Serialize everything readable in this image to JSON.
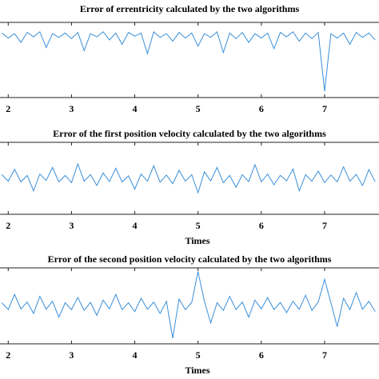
{
  "chart_data": [
    {
      "type": "line",
      "title": "Error of errentricity calculated by the two algorithms",
      "x": [
        1.9,
        2.0,
        2.1,
        2.2,
        2.3,
        2.4,
        2.5,
        2.6,
        2.7,
        2.8,
        2.9,
        3.0,
        3.1,
        3.2,
        3.3,
        3.4,
        3.5,
        3.6,
        3.7,
        3.8,
        3.9,
        4.0,
        4.1,
        4.2,
        4.3,
        4.4,
        4.5,
        4.6,
        4.7,
        4.8,
        4.9,
        5.0,
        5.1,
        5.2,
        5.3,
        5.4,
        5.5,
        5.6,
        5.7,
        5.8,
        5.9,
        6.0,
        6.1,
        6.2,
        6.3,
        6.4,
        6.5,
        6.6,
        6.7,
        6.8,
        6.9,
        7.0,
        7.1,
        7.2,
        7.3,
        7.4,
        7.5,
        7.6,
        7.7,
        7.8
      ],
      "series": [
        {
          "color": "#3a8fd9",
          "values": [
            0.03,
            -0.05,
            0.02,
            -0.12,
            0.04,
            -0.03,
            0.05,
            -0.2,
            0.02,
            -0.04,
            0.03,
            -0.06,
            0.04,
            -0.25,
            0.02,
            -0.03,
            0.05,
            -0.08,
            0.03,
            -0.15,
            0.04,
            -0.02,
            0.03,
            -0.3,
            0.05,
            -0.04,
            0.02,
            -0.1,
            0.04,
            -0.05,
            0.03,
            -0.18,
            0.02,
            -0.04,
            0.05,
            -0.28,
            0.03,
            -0.06,
            0.04,
            -0.12,
            0.02,
            -0.05,
            0.03,
            -0.22,
            0.04,
            -0.03,
            0.05,
            -0.1,
            0.03,
            -0.06,
            0.04,
            -0.9,
            0.02,
            -0.05,
            0.03,
            -0.15,
            0.04,
            -0.04,
            0.03,
            -0.08
          ]
        }
      ],
      "xlim": [
        1.87,
        7.86
      ],
      "ylim": [
        -1,
        0.2
      ],
      "xticks": [
        2,
        3,
        4,
        5,
        6,
        7
      ]
    },
    {
      "type": "line",
      "title": "Error of the first position velocity calculated by the two algorithms",
      "xlabel": "Times",
      "x": [
        1.9,
        2.0,
        2.1,
        2.2,
        2.3,
        2.4,
        2.5,
        2.6,
        2.7,
        2.8,
        2.9,
        3.0,
        3.1,
        3.2,
        3.3,
        3.4,
        3.5,
        3.6,
        3.7,
        3.8,
        3.9,
        4.0,
        4.1,
        4.2,
        4.3,
        4.4,
        4.5,
        4.6,
        4.7,
        4.8,
        4.9,
        5.0,
        5.1,
        5.2,
        5.3,
        5.4,
        5.5,
        5.6,
        5.7,
        5.8,
        5.9,
        6.0,
        6.1,
        6.2,
        6.3,
        6.4,
        6.5,
        6.6,
        6.7,
        6.8,
        6.9,
        7.0,
        7.1,
        7.2,
        7.3,
        7.4,
        7.5,
        7.6,
        7.7,
        7.8
      ],
      "series": [
        {
          "color": "#3a8fd9",
          "values": [
            0.1,
            -0.08,
            0.25,
            -0.1,
            0.08,
            -0.35,
            0.12,
            -0.06,
            0.3,
            -0.1,
            0.08,
            -0.12,
            0.4,
            -0.08,
            0.1,
            -0.2,
            0.15,
            -0.09,
            0.28,
            -0.1,
            0.07,
            -0.3,
            0.12,
            -0.08,
            0.35,
            -0.11,
            0.09,
            -0.15,
            0.22,
            -0.08,
            0.1,
            -0.4,
            0.18,
            -0.07,
            0.3,
            -0.12,
            0.08,
            -0.25,
            0.1,
            -0.09,
            0.38,
            -0.1,
            0.12,
            -0.18,
            0.08,
            -0.07,
            0.26,
            -0.35,
            0.1,
            -0.08,
            0.2,
            -0.12,
            0.09,
            -0.1,
            0.32,
            -0.08,
            0.11,
            -0.2,
            0.24,
            -0.09
          ]
        }
      ],
      "xlim": [
        1.87,
        7.86
      ],
      "ylim": [
        -1,
        1
      ],
      "xticks": [
        2,
        3,
        4,
        5,
        6,
        7
      ]
    },
    {
      "type": "line",
      "title": "Error of the second position velocity calculated by the two algorithms",
      "xlabel": "Times",
      "x": [
        1.9,
        2.0,
        2.1,
        2.2,
        2.3,
        2.4,
        2.5,
        2.6,
        2.7,
        2.8,
        2.9,
        3.0,
        3.1,
        3.2,
        3.3,
        3.4,
        3.5,
        3.6,
        3.7,
        3.8,
        3.9,
        4.0,
        4.1,
        4.2,
        4.3,
        4.4,
        4.5,
        4.6,
        4.7,
        4.8,
        4.9,
        5.0,
        5.1,
        5.2,
        5.3,
        5.4,
        5.5,
        5.6,
        5.7,
        5.8,
        5.9,
        6.0,
        6.1,
        6.2,
        6.3,
        6.4,
        6.5,
        6.6,
        6.7,
        6.8,
        6.9,
        7.0,
        7.1,
        7.2,
        7.3,
        7.4,
        7.5,
        7.6,
        7.7,
        7.8
      ],
      "series": [
        {
          "color": "#3a8fd9",
          "values": [
            0.08,
            -0.1,
            0.3,
            -0.08,
            0.1,
            -0.2,
            0.25,
            -0.09,
            0.12,
            -0.3,
            0.08,
            -0.1,
            0.22,
            -0.12,
            0.09,
            -0.25,
            0.15,
            -0.08,
            0.3,
            -0.1,
            0.08,
            -0.15,
            0.2,
            -0.09,
            0.1,
            -0.2,
            0.12,
            -0.85,
            0.18,
            -0.1,
            0.09,
            0.9,
            0.12,
            -0.45,
            0.08,
            -0.12,
            0.25,
            -0.1,
            0.1,
            -0.3,
            0.15,
            -0.08,
            0.22,
            -0.1,
            0.09,
            -0.18,
            0.12,
            -0.09,
            0.28,
            -0.12,
            0.1,
            0.7,
            0.08,
            -0.55,
            0.2,
            -0.1,
            0.35,
            -0.09,
            0.12,
            -0.15
          ]
        }
      ],
      "xlim": [
        1.87,
        7.86
      ],
      "ylim": [
        -1,
        1
      ],
      "xticks": [
        2,
        3,
        4,
        5,
        6,
        7
      ]
    }
  ]
}
